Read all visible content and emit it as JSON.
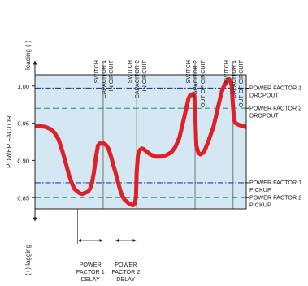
{
  "chart_data": {
    "type": "line",
    "ylabel": "POWER FACTOR",
    "ylim": [
      0.835,
      1.015
    ],
    "y_ticks": [
      "0.85",
      "0.90",
      "0.95",
      "1.00"
    ],
    "y_tick_values": [
      0.85,
      0.9,
      0.95,
      1.0
    ],
    "axis_top_label": "leading (-)",
    "axis_bottom_label": "(+) lagging",
    "grid": false,
    "colors": {
      "plot_bg": "#d4e7f2",
      "curve": "#dd2128",
      "threshold_1": "#2b3f9a",
      "threshold_2": "#3da39a"
    },
    "thresholds": [
      {
        "label_lines": [
          "POWER FACTOR 1",
          "DROPOUT"
        ],
        "value": 0.997,
        "style": "dash-dot",
        "color": "#2b3f9a"
      },
      {
        "label_lines": [
          "POWER FACTOR 2",
          "DROPOUT"
        ],
        "value": 0.97,
        "style": "dash",
        "color": "#3da39a"
      },
      {
        "label_lines": [
          "POWER FACTOR 1",
          "PICKUP"
        ],
        "value": 0.87,
        "style": "dash-dot",
        "color": "#2b3f9a"
      },
      {
        "label_lines": [
          "POWER FACTOR 2",
          "PICKUP"
        ],
        "value": 0.85,
        "style": "dash",
        "color": "#3da39a"
      }
    ],
    "events": [
      {
        "label_lines": [
          "SWITCH",
          "CAPACITOR 1",
          "IN CIRCUIT"
        ],
        "x": 104
      },
      {
        "label_lines": [
          "SWITCH",
          "CAPACITOR 2",
          "IN CIRCUIT"
        ],
        "x": 155
      },
      {
        "label_lines": [
          "SWITCH",
          "CAPACITOR 2",
          "OUT OF CIRCUIT"
        ],
        "x": 244
      },
      {
        "label_lines": [
          "SWITCH",
          "CAPACITOR 1",
          "OUT OF CIRCUIT"
        ],
        "x": 302
      }
    ],
    "delays": [
      {
        "label_lines": [
          "POWER",
          "FACTOR 1",
          "DELAY"
        ],
        "start_x": 65,
        "end_x": 104
      },
      {
        "label_lines": [
          "POWER",
          "FACTOR 2",
          "DELAY"
        ],
        "start_x": 122,
        "end_x": 155
      }
    ],
    "series": [
      {
        "x": [
          0,
          8,
          16,
          24,
          30,
          36,
          42,
          48,
          52,
          56,
          60,
          65,
          68,
          72,
          75,
          78,
          81,
          84,
          87,
          90,
          93,
          96,
          99,
          102,
          104,
          106,
          108,
          112,
          116,
          120,
          124,
          128,
          130,
          132,
          134,
          136,
          138,
          140,
          142,
          144,
          146,
          148,
          150,
          152,
          154,
          155,
          157,
          159,
          161,
          163,
          166,
          170,
          176,
          184,
          192,
          200,
          208,
          214,
          220,
          224,
          228,
          232,
          234,
          236,
          238,
          240,
          242,
          243,
          244,
          246,
          249,
          252,
          256,
          260,
          264,
          268,
          272,
          276,
          280,
          284,
          288,
          292,
          294,
          296,
          298,
          300,
          301,
          302,
          303,
          304,
          306,
          310,
          316,
          322
        ],
        "y": [
          0.947,
          0.946,
          0.945,
          0.942,
          0.937,
          0.928,
          0.912,
          0.893,
          0.88,
          0.87,
          0.862,
          0.858,
          0.856,
          0.855,
          0.856,
          0.857,
          0.858,
          0.862,
          0.87,
          0.885,
          0.905,
          0.92,
          0.923,
          0.922,
          0.923,
          0.922,
          0.921,
          0.916,
          0.905,
          0.892,
          0.88,
          0.866,
          0.86,
          0.855,
          0.851,
          0.848,
          0.846,
          0.845,
          0.843,
          0.842,
          0.841,
          0.84,
          0.84,
          0.842,
          0.85,
          0.885,
          0.908,
          0.913,
          0.915,
          0.916,
          0.915,
          0.912,
          0.908,
          0.905,
          0.905,
          0.907,
          0.911,
          0.918,
          0.93,
          0.945,
          0.96,
          0.975,
          0.983,
          0.987,
          0.988,
          0.989,
          0.988,
          0.986,
          0.968,
          0.92,
          0.91,
          0.908,
          0.91,
          0.916,
          0.925,
          0.935,
          0.945,
          0.96,
          0.975,
          0.99,
          1.0,
          1.005,
          1.008,
          1.009,
          1.007,
          1.0,
          0.985,
          0.97,
          0.96,
          0.953,
          0.95,
          0.948,
          0.946,
          0.945
        ]
      }
    ]
  }
}
